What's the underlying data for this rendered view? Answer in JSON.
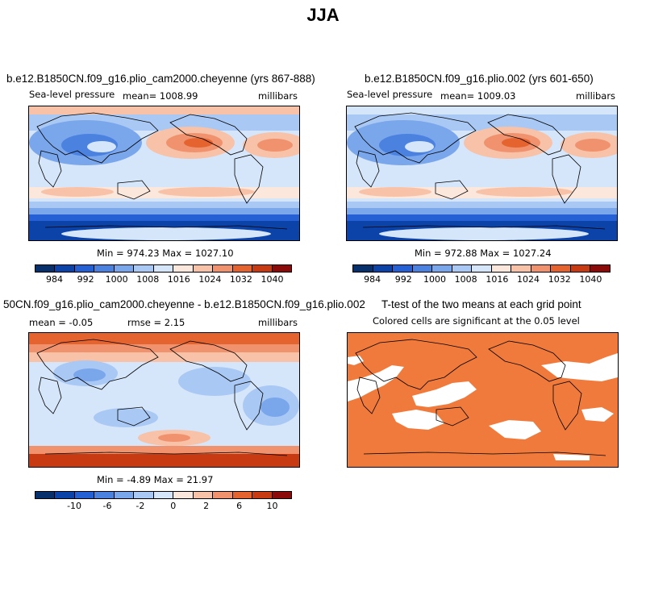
{
  "figure": {
    "title": "JJA"
  },
  "colors": {
    "slp_scale": [
      "#08306b",
      "#0b43a8",
      "#2560d4",
      "#4b82e0",
      "#7aa6ec",
      "#a9c8f4",
      "#d6e6fa",
      "#fbe7dc",
      "#f7c2a8",
      "#f0926e",
      "#e4632f",
      "#c83a12",
      "#8b0a0a"
    ],
    "diff_scale": [
      "#08306b",
      "#0b43a8",
      "#2560d4",
      "#4b82e0",
      "#7aa6ec",
      "#a9c8f4",
      "#d6e6fa",
      "#fbe7dc",
      "#f7c2a8",
      "#f0926e",
      "#e4632f",
      "#c83a12",
      "#8b0a0a"
    ],
    "significant": "#f07a3c",
    "coast": "#000000"
  },
  "panels": {
    "p1": {
      "title": "b.e12.B1850CN.f09_g16.plio_cam2000.cheyenne (yrs 867-888)",
      "left": "Sea-level pressure",
      "center": "mean= 1008.99",
      "right": "millibars",
      "stats": "Min = 974.23 Max = 1027.10",
      "ticks": [
        "984",
        "992",
        "1000",
        "1008",
        "1016",
        "1024",
        "1032",
        "1040"
      ]
    },
    "p2": {
      "title": "b.e12.B1850CN.f09_g16.plio.002 (yrs 601-650)",
      "left": "Sea-level pressure",
      "center": "mean= 1009.03",
      "right": "millibars",
      "stats": "Min = 972.88 Max = 1027.24",
      "ticks": [
        "984",
        "992",
        "1000",
        "1008",
        "1016",
        "1024",
        "1032",
        "1040"
      ]
    },
    "p3": {
      "title": "50CN.f09_g16.plio_cam2000.cheyenne - b.e12.B1850CN.f09_g16.plio.002",
      "left": "mean =   -0.05",
      "center": "rmse =    2.15",
      "right": "millibars",
      "stats": "Min =   -4.89 Max =   21.97",
      "ticks": [
        "-10",
        "-6",
        "-2",
        "0",
        "2",
        "6",
        "10"
      ]
    },
    "p4": {
      "title": "T-test of the two means at each grid point",
      "subtitle": "Colored cells are significant at the 0.05 level"
    }
  },
  "chart_data": [
    {
      "type": "heatmap",
      "title": "b.e12.B1850CN.f09_g16.plio_cam2000.cheyenne (yrs 867-888)",
      "variable": "Sea-level pressure",
      "units": "millibars",
      "mean": 1008.99,
      "min": 974.23,
      "max": 1027.1,
      "colorbar_levels": [
        984,
        992,
        1000,
        1008,
        1016,
        1024,
        1032,
        1040
      ]
    },
    {
      "type": "heatmap",
      "title": "b.e12.B1850CN.f09_g16.plio.002 (yrs 601-650)",
      "variable": "Sea-level pressure",
      "units": "millibars",
      "mean": 1009.03,
      "min": 972.88,
      "max": 1027.24,
      "colorbar_levels": [
        984,
        992,
        1000,
        1008,
        1016,
        1024,
        1032,
        1040
      ]
    },
    {
      "type": "heatmap",
      "title": "50CN.f09_g16.plio_cam2000.cheyenne - b.e12.B1850CN.f09_g16.plio.002",
      "units": "millibars",
      "mean": -0.05,
      "rmse": 2.15,
      "min": -4.89,
      "max": 21.97,
      "colorbar_levels": [
        -10,
        -6,
        -2,
        0,
        2,
        6,
        10
      ]
    },
    {
      "type": "heatmap",
      "title": "T-test of the two means at each grid point",
      "subtitle": "Colored cells are significant at the 0.05 level"
    }
  ]
}
